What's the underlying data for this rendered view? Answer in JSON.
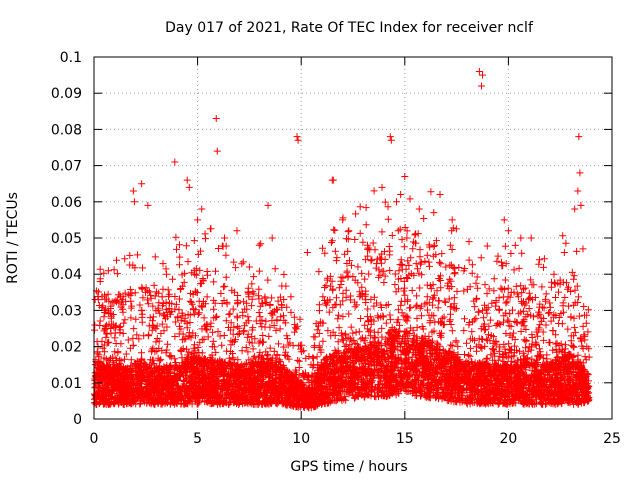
{
  "chart_data": {
    "type": "scatter",
    "title": "Day 017 of 2021, Rate Of TEC Index for receiver nclf",
    "xlabel": "GPS time / hours",
    "ylabel": "ROTI / TECUs",
    "xlim": [
      0,
      25
    ],
    "ylim": [
      0,
      0.1
    ],
    "x_ticks": [
      "0",
      "5",
      "10",
      "15",
      "20",
      "25"
    ],
    "y_ticks": [
      "0",
      "0.01",
      "0.02",
      "0.03",
      "0.04",
      "0.05",
      "0.06",
      "0.07",
      "0.08",
      "0.09",
      "0.1"
    ],
    "grid": true,
    "marker": "+",
    "marker_color": "#ff0000",
    "points_x": [
      0.1,
      0.3,
      0.5,
      0.8,
      1.2,
      1.9,
      1.95,
      2.3,
      2.6,
      3.5,
      3.9,
      4.5,
      4.6,
      5.0,
      5.2,
      5.9,
      5.95,
      6.3,
      6.9,
      7.5,
      8.4,
      8.6,
      9.8,
      9.85,
      10.3,
      11.5,
      11.55,
      12.0,
      12.3,
      13.2,
      13.9,
      14.3,
      14.35,
      14.6,
      14.8,
      15.0,
      15.1,
      15.7,
      16.4,
      16.7,
      17.2,
      18.1,
      18.6,
      18.7,
      18.75,
      19.5,
      19.8,
      20.0,
      20.6,
      21.1,
      21.5,
      22.2,
      22.7,
      23.2,
      23.35,
      23.4,
      23.45,
      23.5,
      23.6
    ],
    "points_y": [
      0.012,
      0.038,
      0.03,
      0.025,
      0.032,
      0.063,
      0.06,
      0.065,
      0.059,
      0.04,
      0.071,
      0.066,
      0.064,
      0.055,
      0.058,
      0.083,
      0.074,
      0.05,
      0.052,
      0.042,
      0.059,
      0.05,
      0.078,
      0.077,
      0.046,
      0.066,
      0.066,
      0.055,
      0.052,
      0.048,
      0.064,
      0.078,
      0.077,
      0.06,
      0.062,
      0.067,
      0.05,
      0.058,
      0.057,
      0.062,
      0.048,
      0.049,
      0.096,
      0.092,
      0.095,
      0.045,
      0.055,
      0.052,
      0.05,
      0.05,
      0.044,
      0.04,
      0.046,
      0.058,
      0.063,
      0.078,
      0.068,
      0.059,
      0.047
    ],
    "density": {
      "hours": [
        0,
        1,
        2,
        3,
        4,
        5,
        6,
        7,
        8,
        9,
        10,
        10.5,
        11,
        12,
        13,
        14,
        15,
        16,
        17,
        18,
        19,
        20,
        21,
        22,
        23,
        23.9
      ],
      "base_low": [
        0.004,
        0.004,
        0.004,
        0.004,
        0.004,
        0.004,
        0.004,
        0.004,
        0.004,
        0.004,
        0.003,
        0.003,
        0.004,
        0.005,
        0.006,
        0.006,
        0.007,
        0.006,
        0.005,
        0.004,
        0.004,
        0.004,
        0.004,
        0.004,
        0.004,
        0.004
      ],
      "base_high": [
        0.016,
        0.014,
        0.015,
        0.014,
        0.015,
        0.017,
        0.016,
        0.015,
        0.016,
        0.015,
        0.01,
        0.008,
        0.016,
        0.019,
        0.02,
        0.022,
        0.024,
        0.022,
        0.018,
        0.016,
        0.015,
        0.015,
        0.016,
        0.015,
        0.018,
        0.012
      ],
      "spread": [
        0.02,
        0.02,
        0.022,
        0.021,
        0.025,
        0.026,
        0.025,
        0.02,
        0.022,
        0.02,
        0.012,
        0.01,
        0.024,
        0.026,
        0.028,
        0.03,
        0.03,
        0.03,
        0.026,
        0.024,
        0.022,
        0.022,
        0.022,
        0.022,
        0.026,
        0.012
      ]
    }
  }
}
